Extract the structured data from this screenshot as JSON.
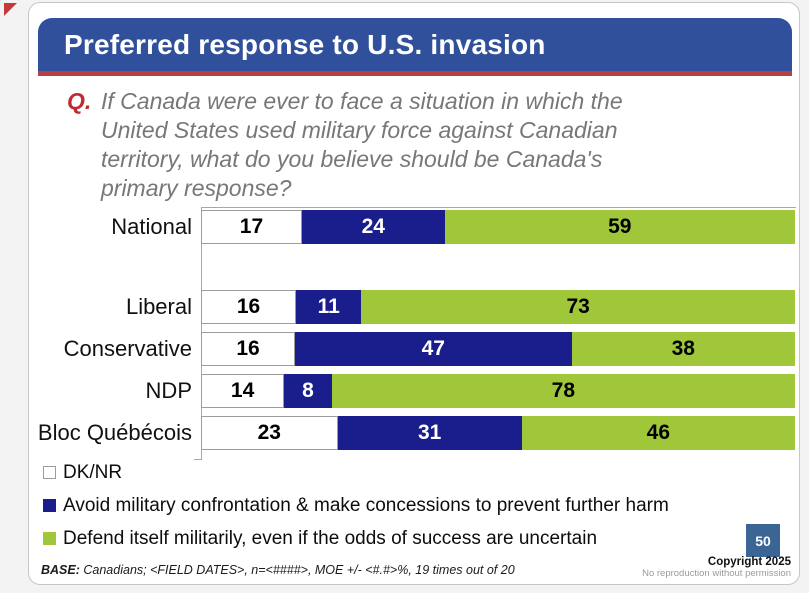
{
  "slide": {
    "title": "Preferred response to U.S. invasion",
    "question_prefix": "Q.",
    "question_lines": [
      "If Canada were ever to face a situation in which the",
      "United States used military force against Canadian",
      "territory, what do you believe should be Canada's",
      "primary response?"
    ],
    "page_number": "50",
    "copyright": "Copyright 2025",
    "copyright_sub": "No reproduction without permission",
    "base_label": "BASE:",
    "base_text": " Canadians; <FIELD DATES>, n=<####>, MOE +/- <#.#>%, 19 times out of 20"
  },
  "colors": {
    "title_bar_blue": "#30509c",
    "accent_red": "#b94045",
    "question_red": "#c02b30",
    "question_gray": "#777777",
    "dknr_white": "#ffffff",
    "avoid_navy": "#1a1e8c",
    "defend_green": "#a0c63a",
    "badge_blue": "#3a6594"
  },
  "chart_data": {
    "type": "bar",
    "orientation": "horizontal-stacked",
    "title": "Preferred response to U.S. invasion",
    "xlabel": "",
    "ylabel": "",
    "xlim": [
      0,
      100
    ],
    "grid": false,
    "value_labels": true,
    "legend_position": "bottom-left",
    "categories": [
      "National",
      "Liberal",
      "Conservative",
      "NDP",
      "Bloc Québécois"
    ],
    "series": [
      {
        "name": "DK/NR",
        "color": "#ffffff",
        "values": [
          17,
          16,
          16,
          14,
          23
        ]
      },
      {
        "name": "Avoid military confrontation & make concessions to prevent further harm",
        "color": "#1a1e8c",
        "values": [
          24,
          11,
          47,
          8,
          31
        ]
      },
      {
        "name": "Defend itself militarily, even if the odds of success are uncertain",
        "color": "#a0c63a",
        "values": [
          59,
          73,
          38,
          78,
          46
        ]
      }
    ]
  }
}
